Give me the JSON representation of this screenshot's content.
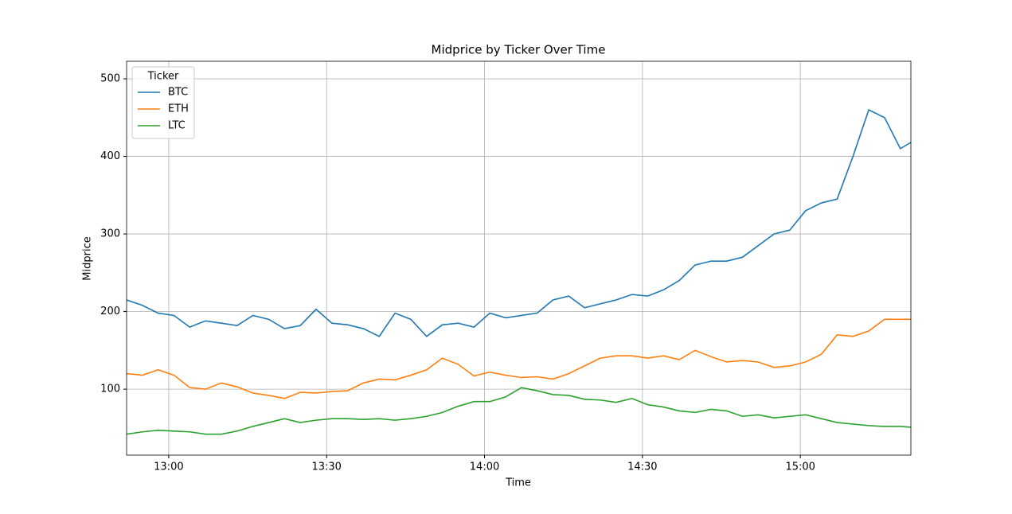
{
  "chart_data": {
    "type": "line",
    "title": "Midprice by Ticker Over Time",
    "x_label": "Time",
    "y_label": "Midprice",
    "legend_title": "Ticker",
    "legend_position": "upper left",
    "grid": true,
    "x": [
      "12:52",
      "12:55",
      "12:58",
      "13:01",
      "13:04",
      "13:07",
      "13:10",
      "13:13",
      "13:16",
      "13:19",
      "13:22",
      "13:25",
      "13:28",
      "13:31",
      "13:34",
      "13:37",
      "13:40",
      "13:43",
      "13:46",
      "13:49",
      "13:52",
      "13:55",
      "13:58",
      "14:01",
      "14:04",
      "14:07",
      "14:10",
      "14:13",
      "14:16",
      "14:19",
      "14:22",
      "14:25",
      "14:28",
      "14:31",
      "14:34",
      "14:37",
      "14:40",
      "14:43",
      "14:46",
      "14:49",
      "14:52",
      "14:55",
      "14:58",
      "15:01",
      "15:04",
      "15:07",
      "15:10",
      "15:13",
      "15:16",
      "15:19",
      "15:21"
    ],
    "xlim": [
      "12:52",
      "15:21"
    ],
    "xticks": [
      "13:00",
      "13:30",
      "14:00",
      "14:30",
      "15:00"
    ],
    "ylim": [
      15,
      522.6
    ],
    "yticks": [
      100,
      200,
      300,
      400,
      500
    ],
    "series": [
      {
        "name": "BTC",
        "color": "#1f77b4",
        "values": [
          215,
          208,
          198,
          195,
          180,
          188,
          185,
          182,
          195,
          190,
          178,
          182,
          203,
          185,
          183,
          178,
          168,
          198,
          190,
          168,
          183,
          185,
          180,
          198,
          192,
          195,
          198,
          215,
          220,
          205,
          210,
          215,
          222,
          220,
          228,
          240,
          260,
          265,
          265,
          270,
          285,
          300,
          305,
          330,
          340,
          345,
          400,
          460,
          450,
          410,
          418
        ]
      },
      {
        "name": "ETH",
        "color": "#ff7f0e",
        "values": [
          120,
          118,
          125,
          118,
          102,
          100,
          108,
          103,
          95,
          92,
          88,
          96,
          95,
          97,
          98,
          108,
          113,
          112,
          118,
          125,
          140,
          132,
          117,
          122,
          118,
          115,
          116,
          113,
          120,
          130,
          140,
          143,
          143,
          140,
          143,
          138,
          150,
          142,
          135,
          137,
          135,
          128,
          130,
          135,
          145,
          170,
          168,
          175,
          190,
          190,
          190
        ]
      },
      {
        "name": "LTC",
        "color": "#2ca02c",
        "values": [
          42,
          45,
          47,
          46,
          45,
          42,
          42,
          46,
          52,
          57,
          62,
          57,
          60,
          62,
          62,
          61,
          62,
          60,
          62,
          65,
          70,
          78,
          84,
          84,
          90,
          102,
          98,
          93,
          92,
          87,
          86,
          83,
          88,
          80,
          77,
          72,
          70,
          74,
          72,
          65,
          67,
          63,
          65,
          67,
          62,
          57,
          55,
          53,
          52,
          52,
          51
        ]
      }
    ]
  }
}
